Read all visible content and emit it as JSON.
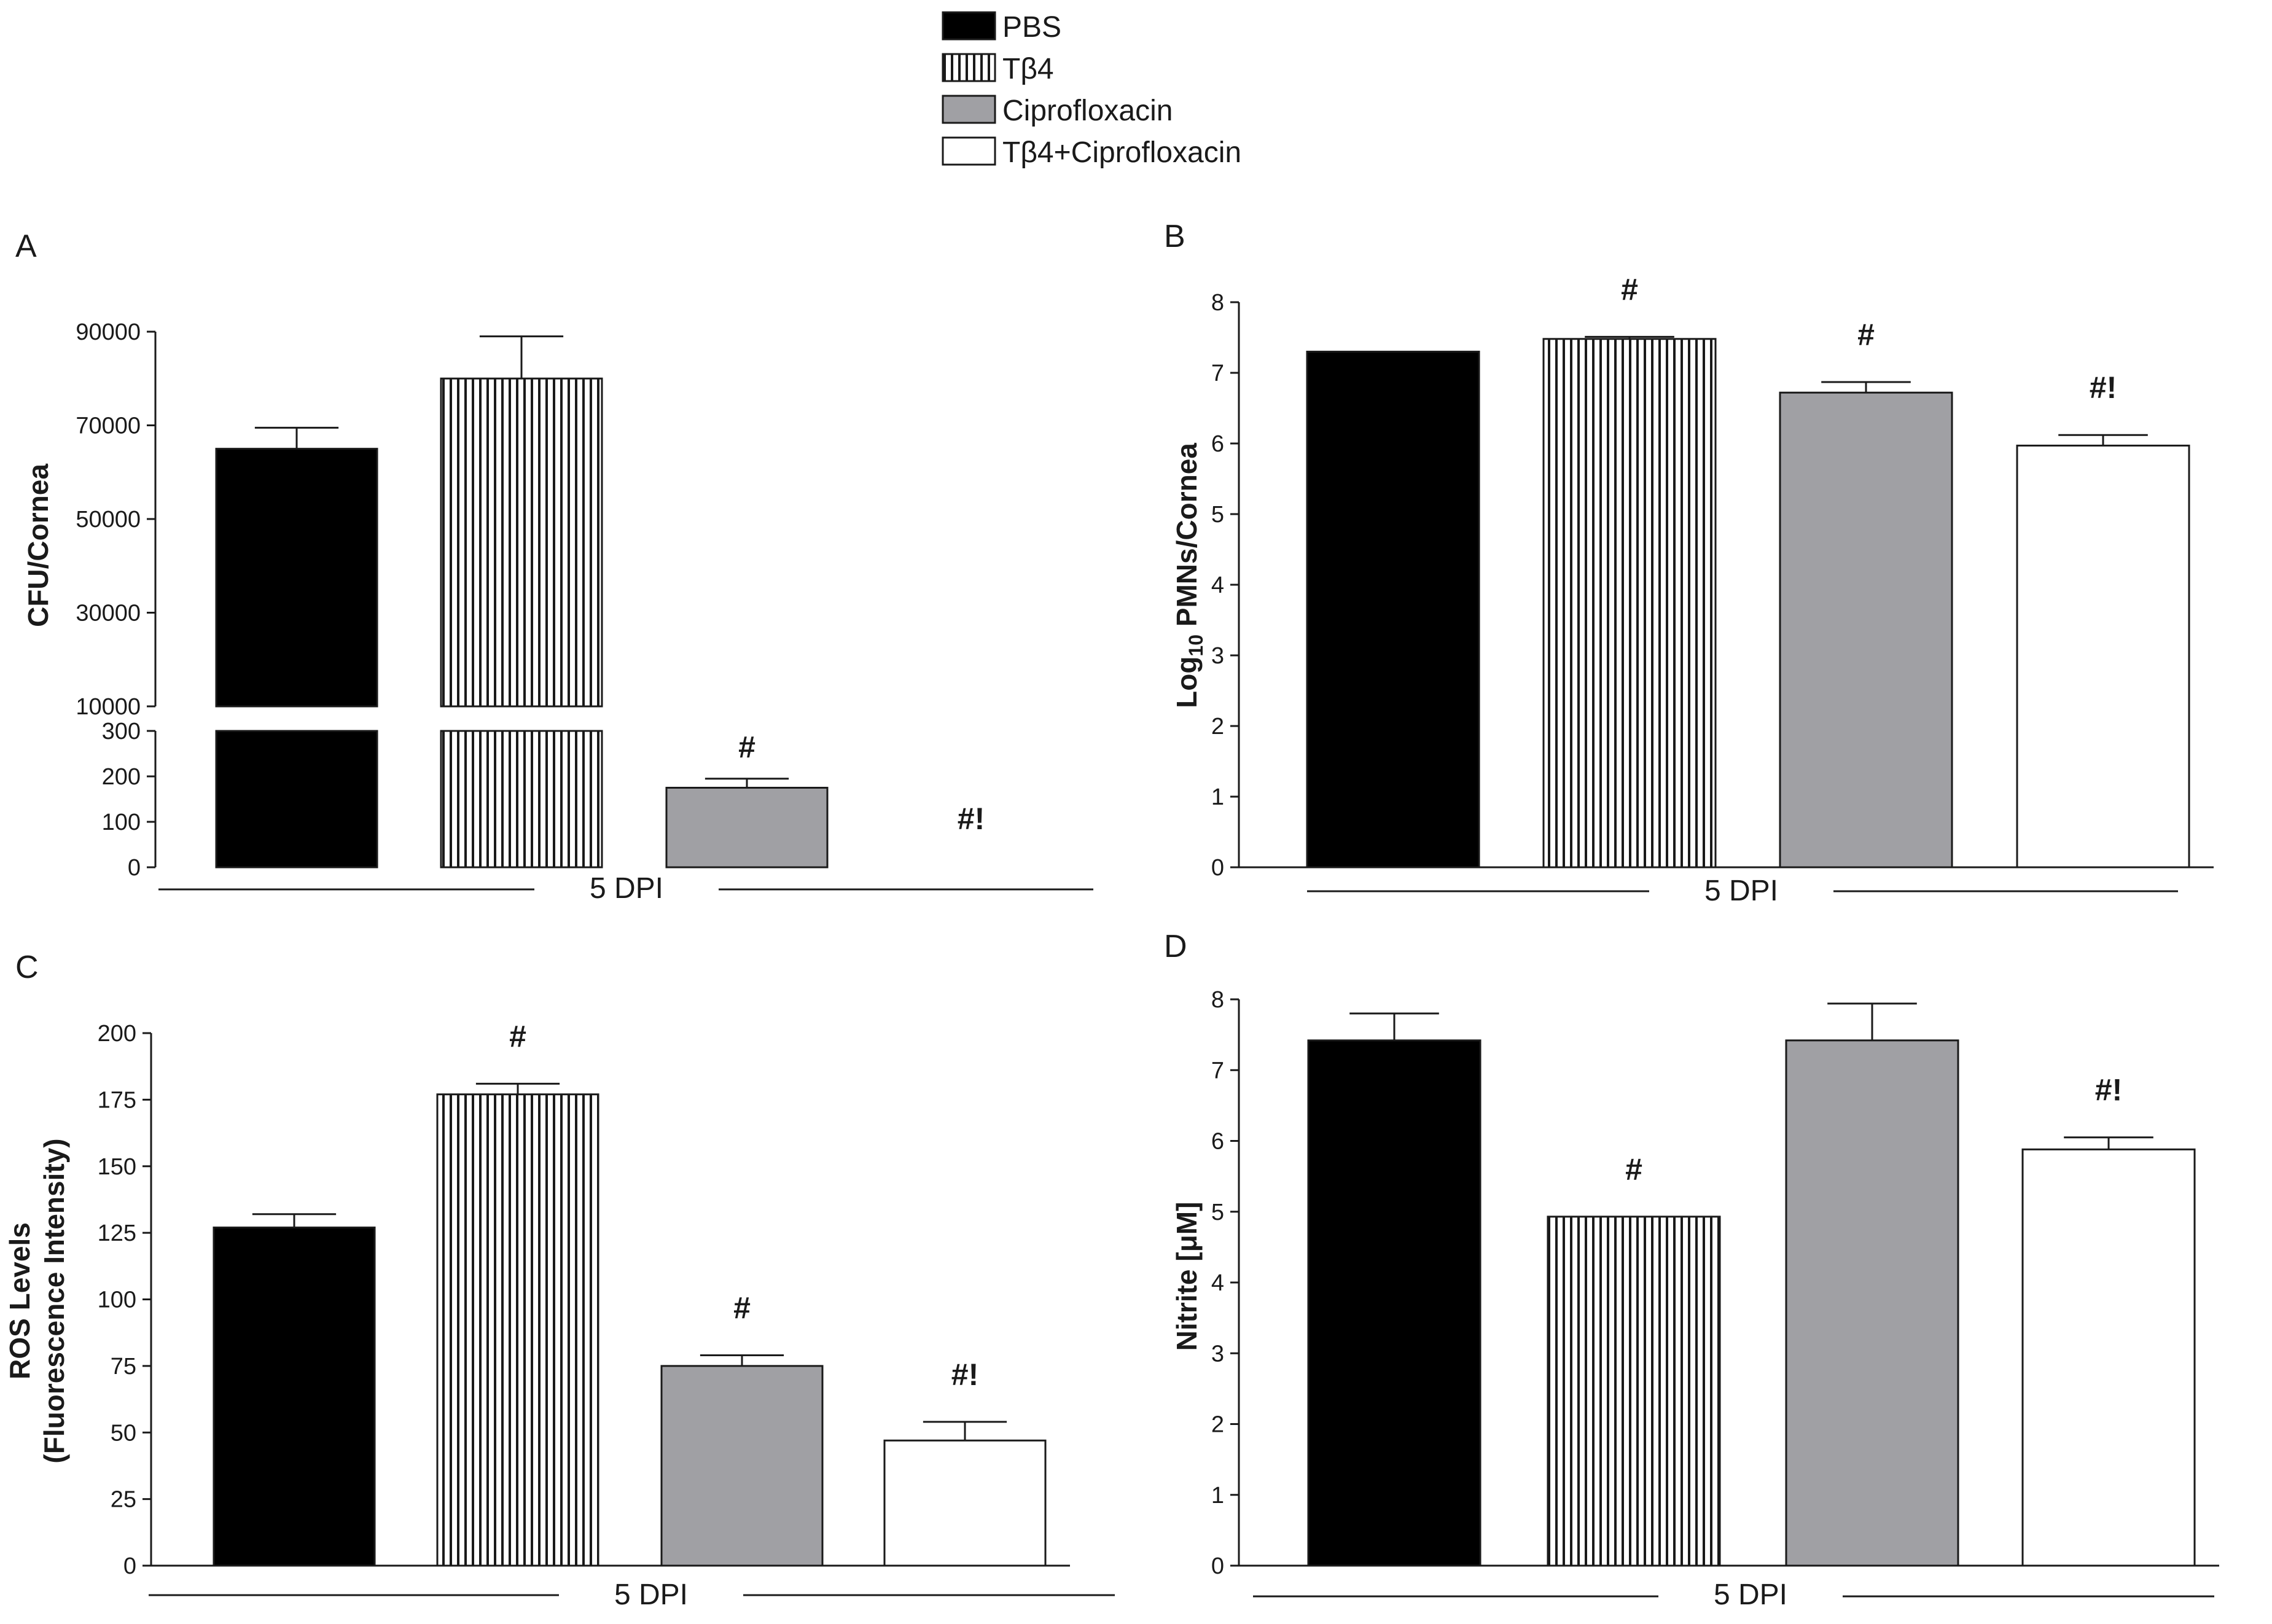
{
  "legend": {
    "items": [
      {
        "label": "PBS",
        "style": "black"
      },
      {
        "label": "Tβ4",
        "style": "striped"
      },
      {
        "label": "Ciprofloxacin",
        "style": "gray"
      },
      {
        "label": "Tβ4+Ciprofloxacin",
        "style": "white"
      }
    ]
  },
  "colors": {
    "black": "#000000",
    "gray": "#a0a0a4",
    "white": "#ffffff",
    "stripe": "#1a1a1a"
  },
  "chart_data": [
    {
      "panel": "A",
      "type": "bar",
      "title": "",
      "ylabel": "CFU/Cornea",
      "xlabel": "5 DPI",
      "axis_break": true,
      "lower_range": [
        0,
        300
      ],
      "lower_ticks": [
        "0",
        "100",
        "200",
        "300"
      ],
      "upper_range": [
        10000,
        90000
      ],
      "upper_ticks": [
        "10000",
        "30000",
        "50000",
        "70000",
        "90000"
      ],
      "categories": [
        "PBS",
        "Tβ4",
        "Ciprofloxacin",
        "Tβ4+Ciprofloxacin"
      ],
      "values": [
        65000,
        80000,
        175,
        0
      ],
      "errors": [
        4500,
        9000,
        20,
        0
      ],
      "annotations": [
        "",
        "",
        "#",
        "#!"
      ]
    },
    {
      "panel": "B",
      "type": "bar",
      "title": "",
      "ylabel": "Log",
      "ylabel_sub": "10",
      "ylabel_rest": " PMNs/Cornea",
      "xlabel": "5 DPI",
      "ylim": [
        0,
        8
      ],
      "yticks": [
        "0",
        "1",
        "2",
        "3",
        "4",
        "5",
        "6",
        "7",
        "8"
      ],
      "categories": [
        "PBS",
        "Tβ4",
        "Ciprofloxacin",
        "Tβ4+Ciprofloxacin"
      ],
      "values": [
        7.3,
        7.48,
        6.72,
        5.97
      ],
      "errors": [
        0.0,
        0.03,
        0.15,
        0.15
      ],
      "annotations": [
        "",
        "#",
        "#",
        "#!"
      ]
    },
    {
      "panel": "C",
      "type": "bar",
      "title": "",
      "ylabel": "ROS Levels",
      "ylabel2": "(Fluorescence Intensity)",
      "xlabel": "5 DPI",
      "ylim": [
        0,
        200
      ],
      "yticks": [
        "0",
        "25",
        "50",
        "75",
        "100",
        "125",
        "150",
        "175",
        "200"
      ],
      "categories": [
        "PBS",
        "Tβ4",
        "Ciprofloxacin",
        "Tβ4+Ciprofloxacin"
      ],
      "values": [
        127,
        177,
        75,
        47
      ],
      "errors": [
        5,
        4,
        4,
        7
      ],
      "annotations": [
        "",
        "#",
        "#",
        "#!"
      ]
    },
    {
      "panel": "D",
      "type": "bar",
      "title": "",
      "ylabel": "Nitrite [μM]",
      "xlabel": "5 DPI",
      "ylim": [
        0,
        8
      ],
      "yticks": [
        "0",
        "1",
        "2",
        "3",
        "4",
        "5",
        "6",
        "7",
        "8"
      ],
      "categories": [
        "PBS",
        "Tβ4",
        "Ciprofloxacin",
        "Tβ4+Ciprofloxacin"
      ],
      "values": [
        7.42,
        4.93,
        7.42,
        5.88
      ],
      "errors": [
        0.38,
        0.0,
        0.52,
        0.17
      ],
      "annotations": [
        "",
        "#",
        "",
        "#!"
      ]
    }
  ]
}
